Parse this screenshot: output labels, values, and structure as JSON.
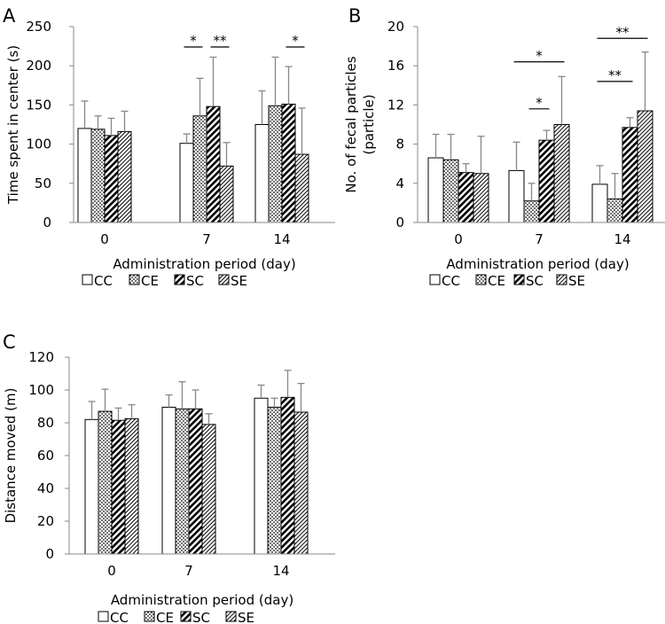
{
  "legend": {
    "items": [
      "CC",
      "CE",
      "SC",
      "SE"
    ]
  },
  "chart_data": [
    {
      "panel": "A",
      "type": "bar",
      "categories": [
        "0",
        "7",
        "14"
      ],
      "series": [
        {
          "name": "CC",
          "values": [
            120,
            101,
            125
          ],
          "errors": [
            35,
            12,
            43
          ]
        },
        {
          "name": "CE",
          "values": [
            119,
            136,
            149
          ],
          "errors": [
            17,
            48,
            62
          ]
        },
        {
          "name": "SC",
          "values": [
            111,
            148,
            151
          ],
          "errors": [
            22,
            63,
            48
          ]
        },
        {
          "name": "SE",
          "values": [
            116,
            72,
            87
          ],
          "errors": [
            26,
            30,
            59
          ]
        }
      ],
      "xlabel": "Administration period (day)",
      "ylabel": "Time spent in center (s)",
      "ylim": [
        0,
        250
      ],
      "yticks": [
        0,
        50,
        100,
        150,
        200,
        250
      ],
      "significance": [
        {
          "category": "7",
          "from": "CC",
          "to": "CE",
          "label": "*",
          "y": 224
        },
        {
          "category": "7",
          "from": "SC",
          "to": "SE",
          "label": "**",
          "y": 224
        },
        {
          "category": "14",
          "from": "SC",
          "to": "SE",
          "label": "*",
          "y": 224
        }
      ]
    },
    {
      "panel": "B",
      "type": "bar",
      "categories": [
        "0",
        "7",
        "14"
      ],
      "series": [
        {
          "name": "CC",
          "values": [
            6.6,
            5.3,
            3.9
          ],
          "errors": [
            2.4,
            2.9,
            1.9
          ]
        },
        {
          "name": "CE",
          "values": [
            6.4,
            2.2,
            2.4
          ],
          "errors": [
            2.6,
            1.8,
            2.6
          ]
        },
        {
          "name": "SC",
          "values": [
            5.1,
            8.4,
            9.7
          ],
          "errors": [
            0.9,
            1.0,
            1.0
          ]
        },
        {
          "name": "SE",
          "values": [
            5.0,
            10.0,
            11.4
          ],
          "errors": [
            3.8,
            4.9,
            6.0
          ]
        }
      ],
      "xlabel": "Administration period (day)",
      "ylabel": "No. of fecal particles (particle)",
      "ylabel_lines": [
        "No. of fecal particles",
        "(particle)"
      ],
      "ylim": [
        0,
        20
      ],
      "yticks": [
        0,
        4,
        8,
        12,
        16,
        20
      ],
      "significance": [
        {
          "category": "7",
          "from": "CE",
          "to": "SC",
          "label": "*",
          "y": 11.6
        },
        {
          "category": "7",
          "from": "CC",
          "to": "SE",
          "label": "*",
          "y": 16.4
        },
        {
          "category": "14",
          "from": "CC",
          "to": "SC",
          "label": "**",
          "y": 14.4
        },
        {
          "category": "14",
          "from": "CC",
          "to": "SE",
          "label": "**",
          "y": 18.8
        }
      ]
    },
    {
      "panel": "C",
      "type": "bar",
      "categories": [
        "0",
        "7",
        "14"
      ],
      "series": [
        {
          "name": "CC",
          "values": [
            82,
            89.5,
            95
          ],
          "errors": [
            11,
            7.5,
            8
          ]
        },
        {
          "name": "CE",
          "values": [
            87,
            88.5,
            89.5
          ],
          "errors": [
            13.5,
            16.5,
            5.5
          ]
        },
        {
          "name": "SC",
          "values": [
            81.5,
            88.5,
            95.5
          ],
          "errors": [
            7.5,
            11.5,
            16.5
          ]
        },
        {
          "name": "SE",
          "values": [
            82.5,
            79,
            86.5
          ],
          "errors": [
            8.5,
            6.5,
            17.5
          ]
        }
      ],
      "xlabel": "Administration period (day)",
      "ylabel": "Distance moved (m)",
      "ylim": [
        0,
        120
      ],
      "yticks": [
        0,
        20,
        40,
        60,
        80,
        100,
        120
      ],
      "significance": []
    }
  ]
}
